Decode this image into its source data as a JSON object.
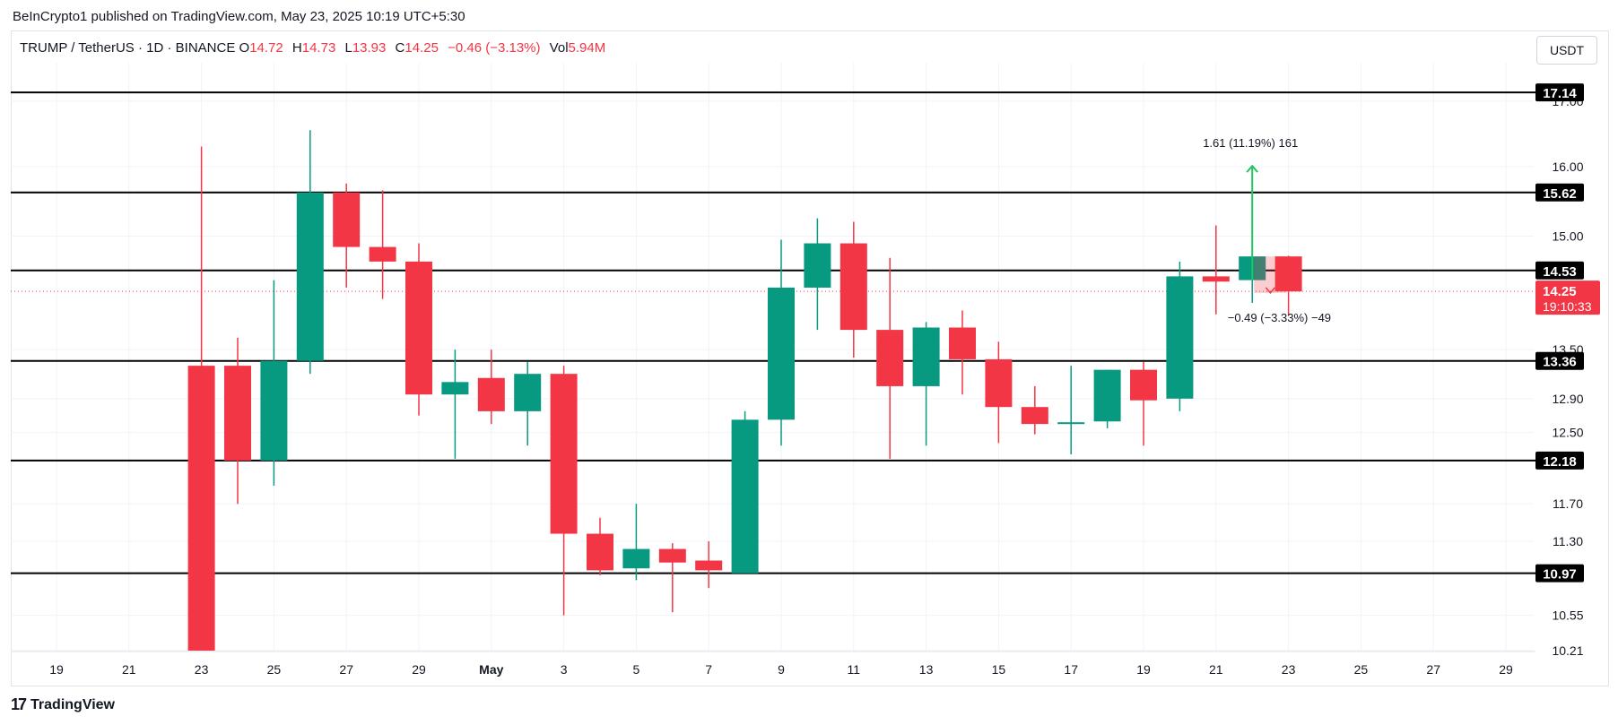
{
  "header": {
    "published_by": "BeInCrypto1 published on TradingView.com, May 23, 2025 10:19 UTC+5:30"
  },
  "legend": {
    "symbol": "TRUMP / TetherUS · 1D · BINANCE",
    "o_label": "O",
    "o_value": "14.72",
    "h_label": "H",
    "h_value": "14.73",
    "l_label": "L",
    "l_value": "13.93",
    "c_label": "C",
    "c_value": "14.25",
    "change": "−0.46 (−3.13%)",
    "vol_label": "Vol",
    "vol_value": "5.94M"
  },
  "currency_button": "USDT",
  "footer": {
    "logo_text": "TradingView",
    "logo_mark": "17"
  },
  "colors": {
    "up": "#089981",
    "down": "#f23645",
    "level_line": "#000000",
    "measure": "#22c55e"
  },
  "chart_data": {
    "type": "candlestick",
    "title": "TRUMP / TetherUS · 1D · BINANCE",
    "ylim": [
      10.21,
      17.3
    ],
    "y_scale": "log",
    "grid": true,
    "x_tick_labels": [
      "19",
      "21",
      "23",
      "25",
      "27",
      "29",
      "May",
      "3",
      "5",
      "7",
      "9",
      "11",
      "13",
      "15",
      "17",
      "19",
      "21",
      "23",
      "25",
      "27",
      "29"
    ],
    "y_tick_labels": [
      "10.21",
      "10.55",
      "11.30",
      "11.70",
      "12.50",
      "12.90",
      "13.50",
      "15.00",
      "16.00",
      "17.00"
    ],
    "candles": [
      {
        "date": "Apr 23",
        "o": 13.3,
        "h": 16.3,
        "l": 10.21,
        "c": 10.21
      },
      {
        "date": "Apr 24",
        "o": 13.3,
        "h": 13.65,
        "l": 11.7,
        "c": 12.18
      },
      {
        "date": "Apr 25",
        "o": 12.18,
        "h": 14.4,
        "l": 11.9,
        "c": 13.36
      },
      {
        "date": "Apr 26",
        "o": 13.36,
        "h": 16.55,
        "l": 13.2,
        "c": 15.62
      },
      {
        "date": "Apr 27",
        "o": 15.62,
        "h": 15.75,
        "l": 14.3,
        "c": 14.85
      },
      {
        "date": "Apr 28",
        "o": 14.85,
        "h": 15.65,
        "l": 14.15,
        "c": 14.65
      },
      {
        "date": "Apr 29",
        "o": 14.65,
        "h": 14.9,
        "l": 12.7,
        "c": 12.95
      },
      {
        "date": "Apr 30",
        "o": 12.95,
        "h": 13.5,
        "l": 12.2,
        "c": 13.1
      },
      {
        "date": "May 1",
        "o": 13.15,
        "h": 13.5,
        "l": 12.6,
        "c": 12.75
      },
      {
        "date": "May 2",
        "o": 12.75,
        "h": 13.35,
        "l": 12.35,
        "c": 13.2
      },
      {
        "date": "May 3",
        "o": 13.2,
        "h": 13.3,
        "l": 10.55,
        "c": 11.38
      },
      {
        "date": "May 4",
        "o": 11.38,
        "h": 11.55,
        "l": 10.95,
        "c": 11.0
      },
      {
        "date": "May 5",
        "o": 11.02,
        "h": 11.7,
        "l": 10.9,
        "c": 11.22
      },
      {
        "date": "May 6",
        "o": 11.22,
        "h": 11.28,
        "l": 10.58,
        "c": 11.08
      },
      {
        "date": "May 7",
        "o": 11.1,
        "h": 11.3,
        "l": 10.82,
        "c": 11.0
      },
      {
        "date": "May 8",
        "o": 10.97,
        "h": 12.75,
        "l": 10.97,
        "c": 12.65
      },
      {
        "date": "May 9",
        "o": 12.65,
        "h": 14.95,
        "l": 12.35,
        "c": 14.3
      },
      {
        "date": "May 10",
        "o": 14.3,
        "h": 15.25,
        "l": 13.75,
        "c": 14.9
      },
      {
        "date": "May 11",
        "o": 14.9,
        "h": 15.2,
        "l": 13.4,
        "c": 13.75
      },
      {
        "date": "May 12",
        "o": 13.75,
        "h": 14.7,
        "l": 12.2,
        "c": 13.05
      },
      {
        "date": "May 13",
        "o": 13.05,
        "h": 13.85,
        "l": 12.35,
        "c": 13.78
      },
      {
        "date": "May 14",
        "o": 13.78,
        "h": 14.0,
        "l": 12.95,
        "c": 13.38
      },
      {
        "date": "May 15",
        "o": 13.38,
        "h": 13.6,
        "l": 12.38,
        "c": 12.8
      },
      {
        "date": "May 16",
        "o": 12.8,
        "h": 13.05,
        "l": 12.48,
        "c": 12.6
      },
      {
        "date": "May 17",
        "o": 12.6,
        "h": 13.3,
        "l": 12.25,
        "c": 12.62
      },
      {
        "date": "May 18",
        "o": 12.63,
        "h": 13.25,
        "l": 12.55,
        "c": 13.25
      },
      {
        "date": "May 19",
        "o": 13.25,
        "h": 13.35,
        "l": 12.35,
        "c": 12.88
      },
      {
        "date": "May 20",
        "o": 12.9,
        "h": 14.65,
        "l": 12.75,
        "c": 14.45
      },
      {
        "date": "May 21",
        "o": 14.45,
        "h": 15.15,
        "l": 13.95,
        "c": 14.38
      },
      {
        "date": "May 22",
        "o": 14.4,
        "h": 14.75,
        "l": 14.1,
        "c": 14.72
      },
      {
        "date": "May 23",
        "o": 14.72,
        "h": 14.73,
        "l": 13.93,
        "c": 14.25
      }
    ],
    "horizontal_levels": [
      {
        "value": 17.14,
        "label": "17.14"
      },
      {
        "value": 15.62,
        "label": "15.62"
      },
      {
        "value": 14.53,
        "label": "14.53"
      },
      {
        "value": 13.36,
        "label": "13.36"
      },
      {
        "value": 12.18,
        "label": "12.18"
      },
      {
        "value": 10.97,
        "label": "10.97"
      }
    ],
    "current_price": {
      "value": 14.25,
      "label": "14.25",
      "countdown": "19:10:33"
    },
    "annotations": [
      {
        "text": "1.61 (11.19%) 161",
        "kind": "measure-up",
        "from": 14.4,
        "to": 16.01
      },
      {
        "text": "−0.49 (−3.33%) −49",
        "kind": "measure-down",
        "from": 14.72,
        "to": 14.23
      }
    ]
  }
}
